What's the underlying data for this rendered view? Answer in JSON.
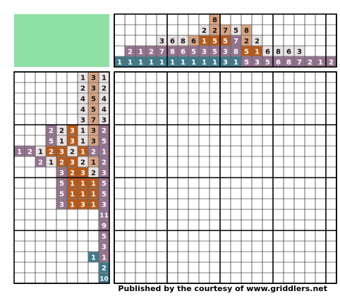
{
  "puzzle": {
    "colors": {
      "white": "#ffffff",
      "light": "#e9e3e3",
      "tan": "#d7a382",
      "orange": "#b85a1b",
      "purple": "#94738f",
      "teal": "#3f7a8c",
      "preview": "#8fe0a4"
    },
    "column_clues": [
      [
        [
          "1",
          "teal"
        ]
      ],
      [
        [
          "2",
          "purple"
        ],
        [
          "1",
          "teal"
        ]
      ],
      [
        [
          "1",
          "purple"
        ],
        [
          "1",
          "teal"
        ]
      ],
      [
        [
          "2",
          "purple"
        ],
        [
          "1",
          "teal"
        ]
      ],
      [
        [
          "3",
          "light"
        ],
        [
          "7",
          "purple"
        ],
        [
          "1",
          "teal"
        ]
      ],
      [
        [
          "6",
          "light"
        ],
        [
          "8",
          "purple"
        ],
        [
          "1",
          "teal"
        ]
      ],
      [
        [
          "8",
          "light"
        ],
        [
          "6",
          "purple"
        ],
        [
          "1",
          "teal"
        ]
      ],
      [
        [
          "6",
          "tan"
        ],
        [
          "5",
          "purple"
        ],
        [
          "1",
          "teal"
        ]
      ],
      [
        [
          "2",
          "light"
        ],
        [
          "1",
          "orange"
        ],
        [
          "3",
          "purple"
        ],
        [
          "1",
          "teal"
        ]
      ],
      [
        [
          "8",
          "tan"
        ],
        [
          "2",
          "tan"
        ],
        [
          "5",
          "orange"
        ],
        [
          "5",
          "purple"
        ],
        [
          "1",
          "teal"
        ]
      ],
      [
        [
          "7",
          "tan"
        ],
        [
          "5",
          "orange"
        ],
        [
          "3",
          "purple"
        ],
        [
          "3",
          "teal"
        ]
      ],
      [
        [
          "5",
          "light"
        ],
        [
          "7",
          "purple"
        ],
        [
          "8",
          "purple"
        ],
        [
          "1",
          "teal"
        ]
      ],
      [
        [
          "8",
          "tan"
        ],
        [
          "2",
          "tan"
        ],
        [
          "5",
          "orange"
        ],
        [
          "5",
          "purple"
        ]
      ],
      [
        [
          "2",
          "light"
        ],
        [
          "1",
          "orange"
        ],
        [
          "3",
          "purple"
        ]
      ],
      [
        [
          "6",
          "light"
        ],
        [
          "5",
          "purple"
        ]
      ],
      [
        [
          "8",
          "light"
        ],
        [
          "6",
          "purple"
        ]
      ],
      [
        [
          "6",
          "light"
        ],
        [
          "8",
          "purple"
        ]
      ],
      [
        [
          "3",
          "light"
        ],
        [
          "7",
          "purple"
        ]
      ],
      [
        [
          "2",
          "purple"
        ]
      ],
      [
        [
          "1",
          "purple"
        ]
      ],
      [
        [
          "2",
          "purple"
        ]
      ]
    ],
    "row_clues": [
      [
        [
          "1",
          "light"
        ],
        [
          "3",
          "tan"
        ],
        [
          "1",
          "light"
        ]
      ],
      [
        [
          "2",
          "light"
        ],
        [
          "3",
          "tan"
        ],
        [
          "2",
          "light"
        ]
      ],
      [
        [
          "4",
          "light"
        ],
        [
          "5",
          "tan"
        ],
        [
          "4",
          "light"
        ]
      ],
      [
        [
          "4",
          "light"
        ],
        [
          "5",
          "tan"
        ],
        [
          "4",
          "light"
        ]
      ],
      [
        [
          "3",
          "light"
        ],
        [
          "7",
          "tan"
        ],
        [
          "3",
          "light"
        ]
      ],
      [
        [
          "2",
          "purple"
        ],
        [
          "2",
          "light"
        ],
        [
          "3",
          "orange"
        ],
        [
          "1",
          "light"
        ],
        [
          "3",
          "tan"
        ],
        [
          "2",
          "purple"
        ]
      ],
      [
        [
          "5",
          "purple"
        ],
        [
          "1",
          "light"
        ],
        [
          "3",
          "orange"
        ],
        [
          "1",
          "light"
        ],
        [
          "3",
          "tan"
        ],
        [
          "5",
          "purple"
        ]
      ],
      [
        [
          "1",
          "purple"
        ],
        [
          "2",
          "purple"
        ],
        [
          "1",
          "light"
        ],
        [
          "2",
          "orange"
        ],
        [
          "3",
          "orange"
        ],
        [
          "2",
          "light"
        ],
        [
          "1",
          "orange"
        ],
        [
          "2",
          "purple"
        ],
        [
          "1",
          "purple"
        ]
      ],
      [
        [
          "2",
          "purple"
        ],
        [
          "1",
          "light"
        ],
        [
          "2",
          "orange"
        ],
        [
          "3",
          "orange"
        ],
        [
          "2",
          "light"
        ],
        [
          "1",
          "tan"
        ],
        [
          "2",
          "purple"
        ]
      ],
      [
        [
          "3",
          "purple"
        ],
        [
          "2",
          "orange"
        ],
        [
          "3",
          "orange"
        ],
        [
          "2",
          "light"
        ],
        [
          "3",
          "purple"
        ]
      ],
      [
        [
          "5",
          "purple"
        ],
        [
          "1",
          "orange"
        ],
        [
          "1",
          "orange"
        ],
        [
          "1",
          "orange"
        ],
        [
          "5",
          "purple"
        ]
      ],
      [
        [
          "5",
          "purple"
        ],
        [
          "1",
          "orange"
        ],
        [
          "1",
          "orange"
        ],
        [
          "1",
          "orange"
        ],
        [
          "5",
          "purple"
        ]
      ],
      [
        [
          "3",
          "purple"
        ],
        [
          "1",
          "orange"
        ],
        [
          "3",
          "orange"
        ],
        [
          "1",
          "orange"
        ],
        [
          "3",
          "purple"
        ]
      ],
      [
        [
          "11",
          "purple"
        ]
      ],
      [
        [
          "9",
          "purple"
        ]
      ],
      [
        [
          "5",
          "purple"
        ]
      ],
      [
        [
          "3",
          "purple"
        ]
      ],
      [
        [
          "1",
          "teal"
        ],
        [
          "1",
          "purple"
        ]
      ],
      [
        [
          "2",
          "teal"
        ]
      ],
      [
        [
          "10",
          "teal"
        ]
      ]
    ]
  },
  "footer": {
    "credit": "Published by the courtesy of www.griddlers.net"
  }
}
